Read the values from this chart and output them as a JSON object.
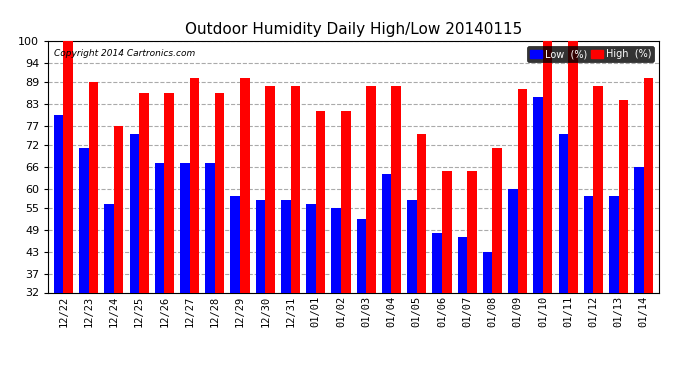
{
  "title": "Outdoor Humidity Daily High/Low 20140115",
  "copyright": "Copyright 2014 Cartronics.com",
  "categories": [
    "12/22",
    "12/23",
    "12/24",
    "12/25",
    "12/26",
    "12/27",
    "12/28",
    "12/29",
    "12/30",
    "12/31",
    "01/01",
    "01/02",
    "01/03",
    "01/04",
    "01/05",
    "01/06",
    "01/07",
    "01/08",
    "01/09",
    "01/10",
    "01/11",
    "01/12",
    "01/13",
    "01/14"
  ],
  "high": [
    100,
    89,
    77,
    86,
    86,
    90,
    86,
    90,
    88,
    88,
    81,
    81,
    88,
    88,
    75,
    65,
    65,
    71,
    87,
    100,
    100,
    88,
    84,
    90
  ],
  "low": [
    80,
    71,
    56,
    75,
    67,
    67,
    67,
    58,
    57,
    57,
    56,
    55,
    52,
    64,
    57,
    48,
    47,
    43,
    60,
    85,
    75,
    58,
    58,
    66
  ],
  "ymin": 32,
  "ymax": 100,
  "yticks": [
    32,
    37,
    43,
    49,
    55,
    60,
    66,
    72,
    77,
    83,
    89,
    94,
    100
  ],
  "high_color": "#ff0000",
  "low_color": "#0000ff",
  "bg_color": "#ffffff",
  "grid_color": "#aaaaaa",
  "legend_low_label": "Low  (%)",
  "legend_high_label": "High  (%)",
  "bar_width": 0.38
}
